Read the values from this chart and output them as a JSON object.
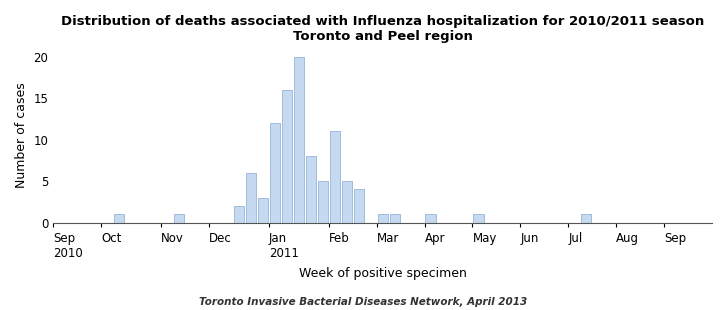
{
  "title_line1": "Distribution of deaths associated with Influenza hospitalization for 2010/2011 season",
  "title_line2": "Toronto and Peel region",
  "xlabel": "Week of positive specimen",
  "ylabel": "Number of cases",
  "footnote": "Toronto Invasive Bacterial Diseases Network, April 2013",
  "bar_color": "#c5d9f1",
  "bar_edgecolor": "#95b3d7",
  "ylim": [
    0,
    21
  ],
  "yticks": [
    0,
    5,
    10,
    15,
    20
  ],
  "values": [
    0,
    0,
    0,
    0,
    0,
    1,
    0,
    0,
    0,
    0,
    1,
    0,
    0,
    0,
    0,
    2,
    6,
    3,
    12,
    16,
    20,
    8,
    5,
    11,
    5,
    4,
    0,
    1,
    1,
    0,
    0,
    1,
    0,
    0,
    0,
    1,
    0,
    0,
    0,
    0,
    0,
    0,
    0,
    0,
    1,
    0,
    0,
    0,
    0,
    0,
    0,
    0,
    0,
    0,
    0
  ],
  "month_boundaries": [
    0,
    4,
    9,
    13,
    18,
    23,
    27,
    31,
    35,
    39,
    43,
    47,
    51,
    55
  ],
  "month_labels": [
    "Sep\n2010",
    "Oct",
    "Nov",
    "Dec",
    "Jan\n2011",
    "Feb",
    "Mar",
    "Apr",
    "May",
    "Jun",
    "Jul",
    "Aug",
    "Sep"
  ],
  "background_color": "#ffffff",
  "title_fontsize": 9.5,
  "axis_label_fontsize": 9,
  "tick_fontsize": 8.5,
  "footnote_fontsize": 7.5
}
